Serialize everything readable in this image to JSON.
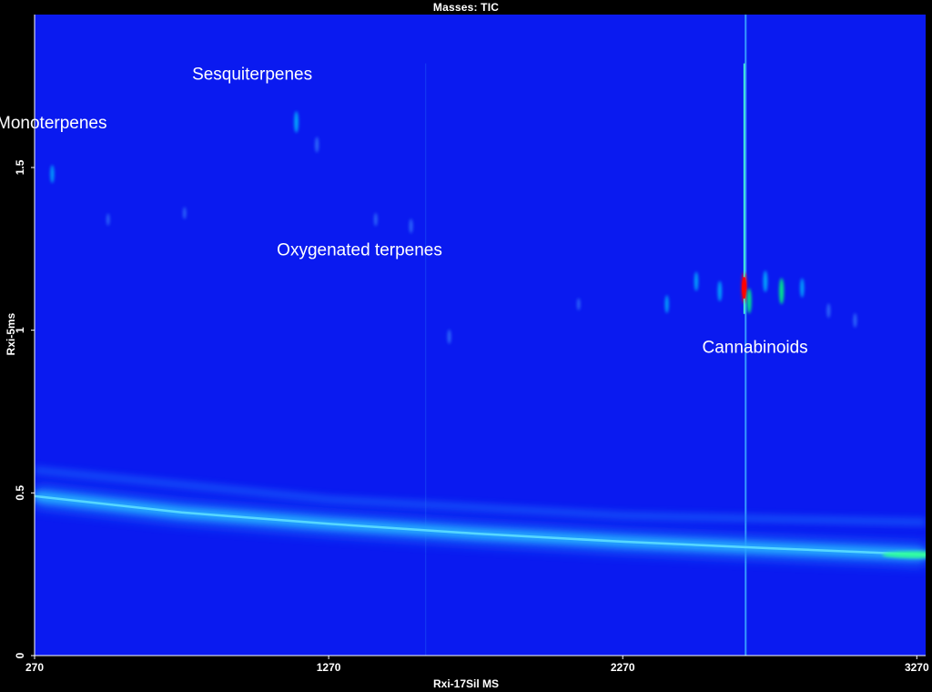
{
  "header": {
    "title": "Masses:  TIC"
  },
  "chart_data": {
    "type": "heatmap",
    "title": "Masses:  TIC",
    "xlabel": "Rxi-17Sil MS",
    "ylabel": "Rxi-5ms",
    "xlim": [
      270,
      3300
    ],
    "ylim": [
      0,
      1.97
    ],
    "xticks": [
      "270",
      "1270",
      "2270",
      "3270"
    ],
    "xtick_values": [
      270,
      1270,
      2270,
      3270
    ],
    "yticks": [
      "0",
      "0.5",
      "1",
      "1.5"
    ],
    "ytick_values": [
      0,
      0.5,
      1,
      1.5
    ],
    "colormap": [
      "#0000ff",
      "#00c8ff",
      "#00ff80",
      "#ffff00",
      "#ff0000"
    ],
    "background_color": "#0a1af0",
    "annotations": [
      {
        "text": "Monoterpenes",
        "x": 328,
        "y": 1.62
      },
      {
        "text": "Sesquiterpenes",
        "x": 1010,
        "y": 1.77
      },
      {
        "text": "Oxygenated terpenes",
        "x": 1375,
        "y": 1.23
      },
      {
        "text": "Cannabinoids",
        "x": 2720,
        "y": 0.93
      }
    ],
    "column_bleed": [
      {
        "x": 1600,
        "y": 1.82,
        "y_low": 0.0
      },
      {
        "x": 2688,
        "y": 1.97,
        "y_low": 0.0
      }
    ],
    "bands": [
      {
        "name": "column bleed",
        "points": [
          [
            270,
            0.49
          ],
          [
            770,
            0.44
          ],
          [
            1270,
            0.405
          ],
          [
            1770,
            0.375
          ],
          [
            2270,
            0.35
          ],
          [
            2770,
            0.33
          ],
          [
            3300,
            0.31
          ]
        ]
      },
      {
        "name": "secondary bleed",
        "points": [
          [
            270,
            0.57
          ],
          [
            1270,
            0.48
          ],
          [
            2270,
            0.43
          ],
          [
            2770,
            0.42
          ],
          [
            3300,
            0.41
          ]
        ]
      }
    ],
    "peaks": [
      {
        "x": 330,
        "y": 1.48,
        "intensity": 0.45
      },
      {
        "x": 520,
        "y": 1.34,
        "intensity": 0.2
      },
      {
        "x": 780,
        "y": 1.36,
        "intensity": 0.2
      },
      {
        "x": 1160,
        "y": 1.64,
        "intensity": 0.6
      },
      {
        "x": 1230,
        "y": 1.57,
        "intensity": 0.35
      },
      {
        "x": 1430,
        "y": 1.34,
        "intensity": 0.25
      },
      {
        "x": 1550,
        "y": 1.32,
        "intensity": 0.3
      },
      {
        "x": 1680,
        "y": 0.98,
        "intensity": 0.3
      },
      {
        "x": 2120,
        "y": 1.08,
        "intensity": 0.2
      },
      {
        "x": 2420,
        "y": 1.08,
        "intensity": 0.45
      },
      {
        "x": 2520,
        "y": 1.15,
        "intensity": 0.5
      },
      {
        "x": 2600,
        "y": 1.12,
        "intensity": 0.55
      },
      {
        "x": 2683,
        "y": 1.13,
        "intensity": 1.0
      },
      {
        "x": 2700,
        "y": 1.09,
        "intensity": 0.75
      },
      {
        "x": 2755,
        "y": 1.15,
        "intensity": 0.6
      },
      {
        "x": 2810,
        "y": 1.12,
        "intensity": 0.8
      },
      {
        "x": 2880,
        "y": 1.13,
        "intensity": 0.5
      },
      {
        "x": 2970,
        "y": 1.06,
        "intensity": 0.3
      },
      {
        "x": 3060,
        "y": 1.03,
        "intensity": 0.3
      }
    ]
  }
}
